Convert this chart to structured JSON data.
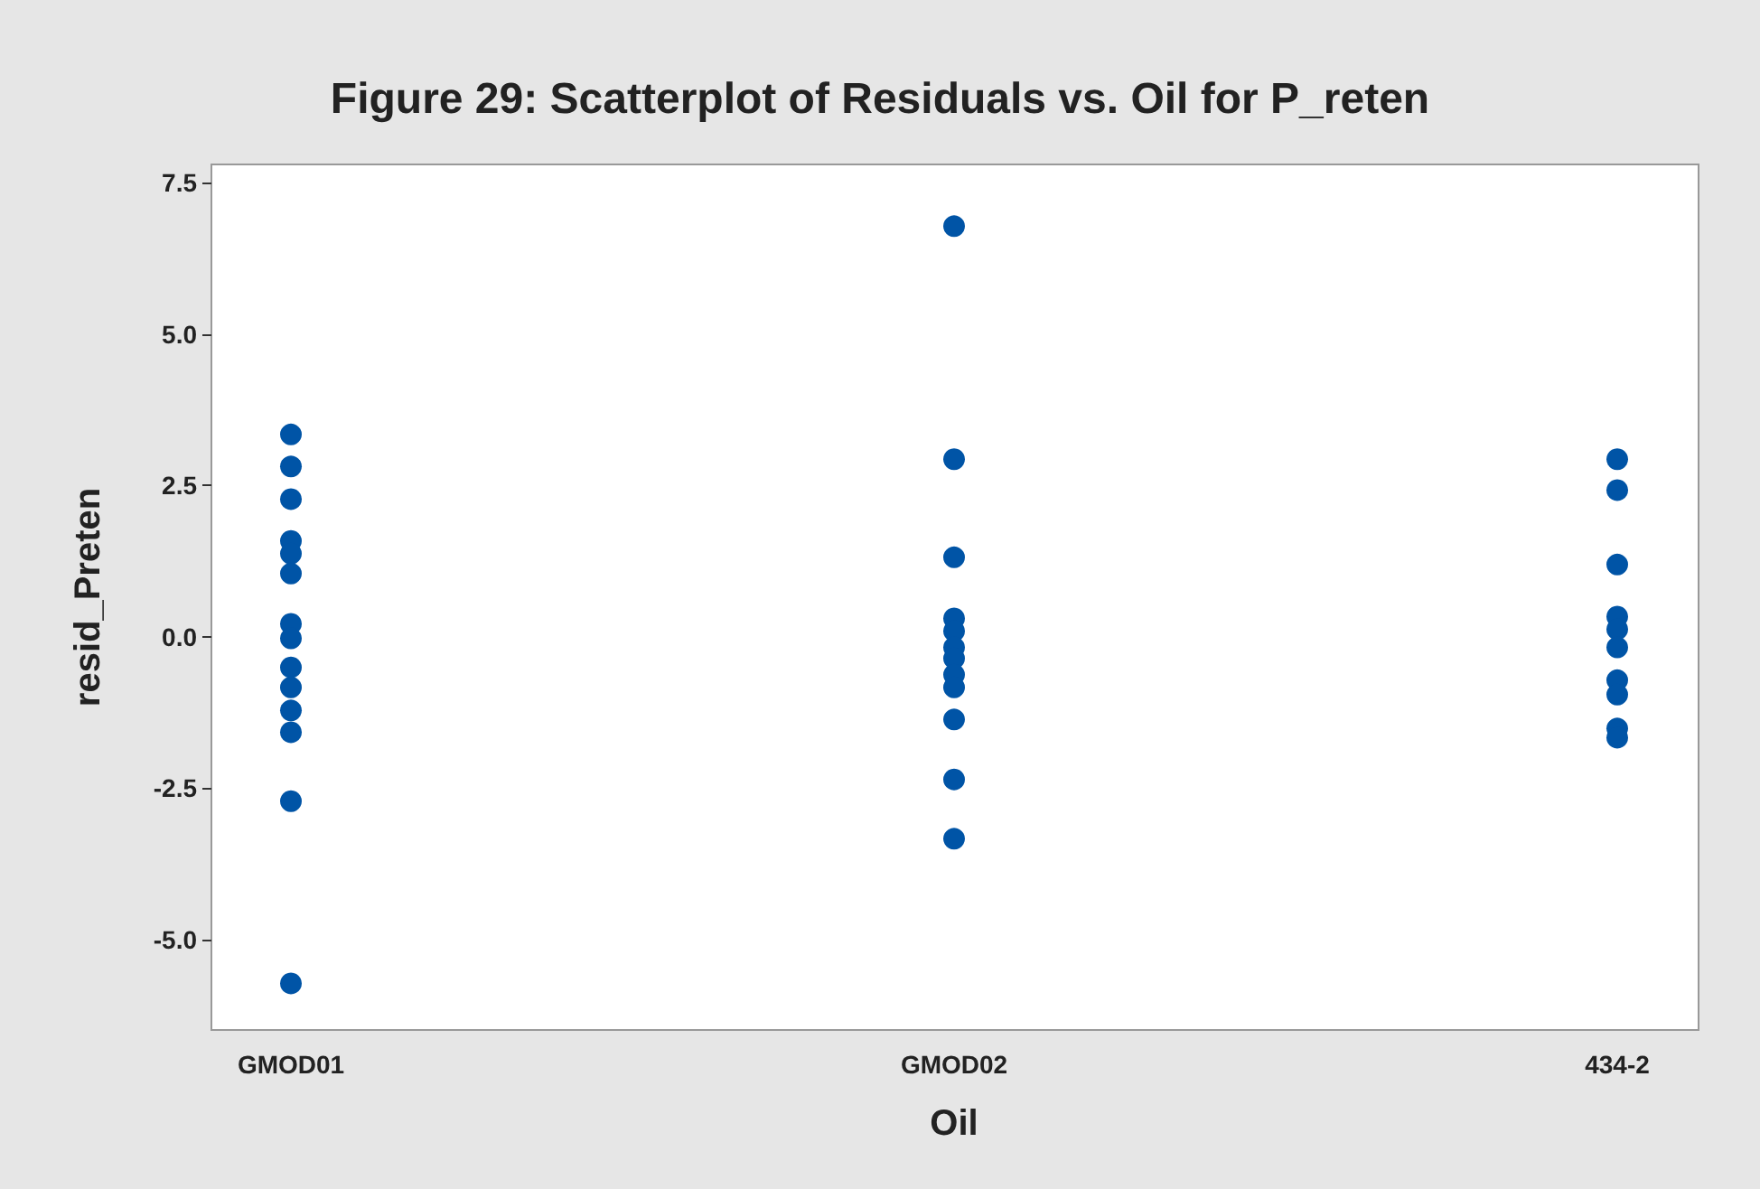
{
  "chart_data": {
    "type": "scatter",
    "title": "Figure 29: Scatterplot of Residuals vs. Oil for P_reten",
    "xlabel": "Oil",
    "ylabel": "resid_Preten",
    "categories": [
      "GMOD01",
      "GMOD02",
      "434-2"
    ],
    "series": [
      {
        "color": "#0054a6",
        "x": [
          "GMOD01",
          "GMOD01",
          "GMOD01",
          "GMOD01",
          "GMOD01",
          "GMOD01",
          "GMOD01",
          "GMOD01",
          "GMOD01",
          "GMOD01",
          "GMOD01",
          "GMOD01",
          "GMOD01",
          "GMOD01",
          "GMOD02",
          "GMOD02",
          "GMOD02",
          "GMOD02",
          "GMOD02",
          "GMOD02",
          "GMOD02",
          "GMOD02",
          "GMOD02",
          "GMOD02",
          "GMOD02",
          "GMOD02",
          "434-2",
          "434-2",
          "434-2",
          "434-2",
          "434-2",
          "434-2",
          "434-2",
          "434-2",
          "434-2",
          "434-2"
        ],
        "values": [
          3.34,
          2.81,
          2.27,
          1.58,
          1.37,
          1.04,
          0.21,
          -0.03,
          -0.51,
          -0.84,
          -1.22,
          -1.58,
          -2.72,
          -5.73,
          6.78,
          2.93,
          1.31,
          0.3,
          0.09,
          -0.18,
          -0.36,
          -0.63,
          -0.84,
          -1.37,
          -2.36,
          -3.34,
          2.93,
          2.42,
          1.19,
          0.33,
          0.12,
          -0.18,
          -0.72,
          -0.96,
          -1.52,
          -1.67
        ]
      }
    ],
    "ylim": [
      -6.5,
      7.8
    ],
    "yticks": [
      {
        "value": -5,
        "label": "-5.0"
      },
      {
        "value": -2.5,
        "label": "-2.5"
      },
      {
        "value": 0,
        "label": "0.0"
      },
      {
        "value": 2.5,
        "label": "2.5"
      },
      {
        "value": 5,
        "label": "5.0"
      },
      {
        "value": 7.5,
        "label": "7.5"
      }
    ],
    "grid": false,
    "marker": "circle"
  }
}
